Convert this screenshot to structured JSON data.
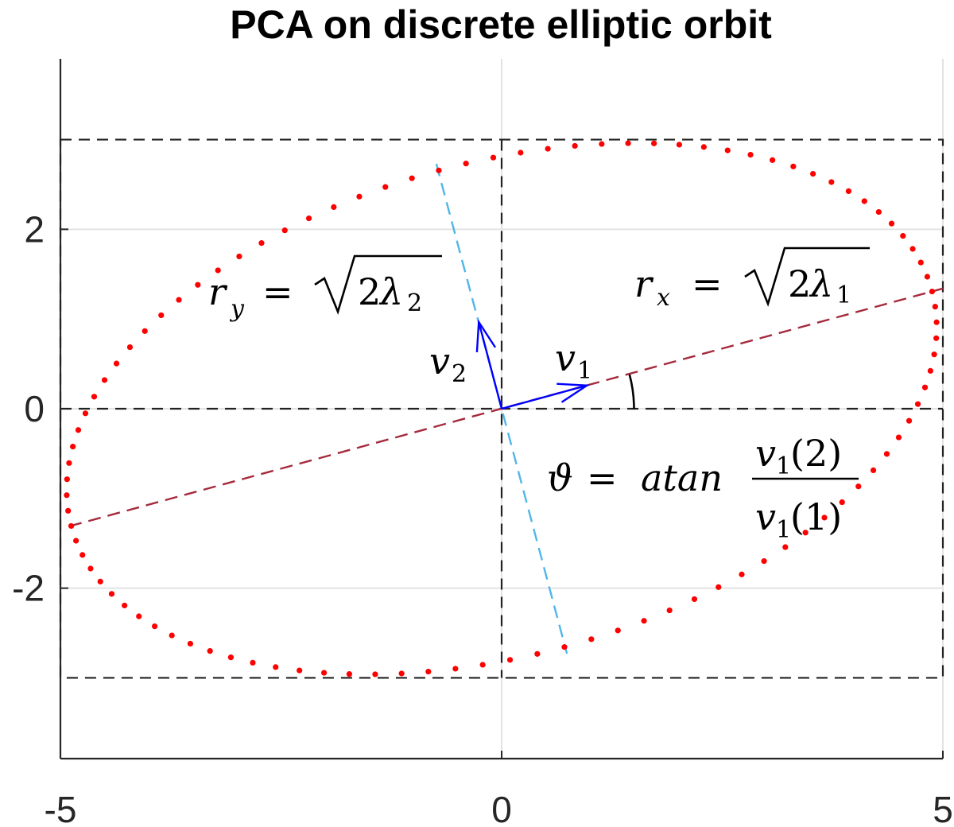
{
  "chart_data": {
    "type": "scatter",
    "title": "PCA on discrete elliptic orbit",
    "xlabel": "",
    "ylabel": "",
    "xlim": [
      -5,
      5
    ],
    "ylim": [
      -3.9,
      3.9
    ],
    "xticks": [
      -5,
      0,
      5
    ],
    "yticks": [
      -2,
      0,
      2
    ],
    "xtick_labels": [
      "-5",
      "0",
      "5"
    ],
    "ytick_labels": [
      "-2",
      "0",
      "2"
    ],
    "grid": true,
    "orbit": {
      "semi_major": 5.05,
      "semi_minor": 2.75,
      "theta_deg": 15,
      "num_points": 100,
      "color": "#ff0000"
    },
    "bounding_box": {
      "x": [
        -5,
        5
      ],
      "y": [
        -3,
        3
      ]
    },
    "axes_lines": {
      "horizontal_y": 0,
      "vertical_x": 0
    },
    "principal_axis_1": {
      "from": [
        -4.9,
        -1.31
      ],
      "to": [
        5,
        1.34
      ],
      "color": "#a52a3c"
    },
    "principal_axis_2": {
      "from": [
        -0.74,
        2.73
      ],
      "to": [
        0.74,
        -2.73
      ],
      "color": "#4fb7e8"
    },
    "vectors": [
      {
        "name": "v1",
        "from": [
          0,
          0
        ],
        "to": [
          0.966,
          0.259
        ],
        "color": "#0000ff"
      },
      {
        "name": "v2",
        "from": [
          0,
          0
        ],
        "to": [
          -0.259,
          0.966
        ],
        "color": "#0000ff"
      }
    ],
    "angle_arc": {
      "radius": 1.5,
      "from_deg": 0,
      "to_deg": 15
    },
    "annotations": {
      "ry": {
        "lhs_base": "r",
        "lhs_sub": "y",
        "eq": "=",
        "two": "2",
        "lambda": "λ",
        "lambda_sub": "2"
      },
      "rx": {
        "lhs_base": "r",
        "lhs_sub": "x",
        "eq": "=",
        "two": "2",
        "lambda": "λ",
        "lambda_sub": "1"
      },
      "v1": {
        "base": "v",
        "sub": "1"
      },
      "v2": {
        "base": "v",
        "sub": "2"
      },
      "theta": {
        "symbol": "ϑ",
        "eq": "=",
        "func": "atan",
        "num_base": "v",
        "num_sub": "1",
        "num_arg": "(2)",
        "den_base": "v",
        "den_sub": "1",
        "den_arg": "(1)"
      }
    }
  }
}
